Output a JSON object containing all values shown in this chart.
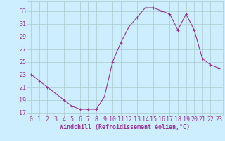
{
  "x": [
    0,
    1,
    2,
    3,
    4,
    5,
    6,
    7,
    8,
    9,
    10,
    11,
    12,
    13,
    14,
    15,
    16,
    17,
    18,
    19,
    20,
    21,
    22,
    23
  ],
  "y": [
    23,
    22,
    21,
    20,
    19,
    18,
    17.5,
    17.5,
    17.5,
    19.5,
    25,
    28,
    30.5,
    32,
    33.5,
    33.5,
    33,
    32.5,
    30,
    32.5,
    30,
    25.5,
    24.5,
    24
  ],
  "line_color": "#993399",
  "marker": "+",
  "marker_size": 3,
  "marker_lw": 0.8,
  "line_width": 0.8,
  "bg_color": "#cceeff",
  "grid_color": "#aacccc",
  "xlabel": "Windchill (Refroidissement éolien,°C)",
  "xlabel_fontsize": 6,
  "tick_fontsize": 6,
  "ylim": [
    16.5,
    34.5
  ],
  "xlim": [
    -0.5,
    23.5
  ],
  "yticks": [
    17,
    19,
    21,
    23,
    25,
    27,
    29,
    31,
    33
  ],
  "xticks": [
    0,
    1,
    2,
    3,
    4,
    5,
    6,
    7,
    8,
    9,
    10,
    11,
    12,
    13,
    14,
    15,
    16,
    17,
    18,
    19,
    20,
    21,
    22,
    23
  ],
  "xtick_labels": [
    "0",
    "1",
    "2",
    "3",
    "4",
    "5",
    "6",
    "7",
    "8",
    "9",
    "10",
    "11",
    "12",
    "13",
    "14",
    "15",
    "16",
    "17",
    "18",
    "19",
    "20",
    "21",
    "22",
    "23"
  ]
}
